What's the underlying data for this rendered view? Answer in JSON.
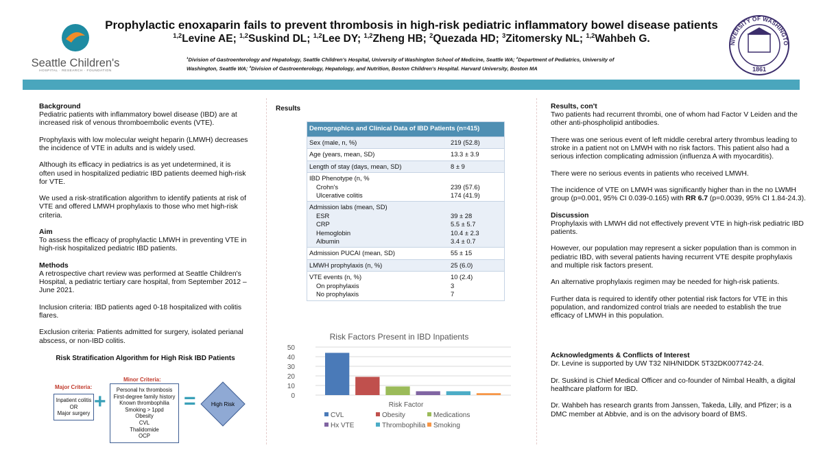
{
  "header": {
    "title": "Prophylactic enoxaparin fails to prevent thrombosis in high-risk pediatric inflammatory bowel disease patients",
    "authors": [
      {
        "sup": "1,2",
        "name": "Levine AE;"
      },
      {
        "sup": "1,2",
        "name": "Suskind DL;"
      },
      {
        "sup": "1,2",
        "name": "Lee DY;"
      },
      {
        "sup": "1,2",
        "name": "Zheng HB;"
      },
      {
        "sup": "2",
        "name": "Quezada HD;"
      },
      {
        "sup": "3",
        "name": "Zitomersky NL;"
      },
      {
        "sup": "1,2",
        "name": "Wahbeh G."
      }
    ],
    "affiliations": [
      {
        "sup": "1",
        "text": "Division of Gastroenterology and Hepatology, Seattle Children's Hospital, University of Washington School of Medicine, Seattle WA;"
      },
      {
        "sup": "2",
        "text": "Department of Pediatrics, University of Washington, Seattle WA;"
      },
      {
        "sup": "3",
        "text": "Division of Gastroenterology, Hepatology, and Nutrition, Boston Children's Hospital. Harvard University, Boston MA"
      }
    ],
    "logo": {
      "name": "Seattle Children's",
      "tagline": "HOSPITAL · RESEARCH · FOUNDATION"
    },
    "seal": {
      "text": "UNIVERSITY OF WASHINGTON",
      "year": "1861"
    }
  },
  "left": [
    {
      "heading": "Background",
      "paragraphs": [
        "Pediatric patients with inflammatory bowel disease (IBD) are at increased risk of venous thromboembolic events (VTE).",
        "Prophylaxis with low molecular weight heparin (LMWH) decreases the incidence of VTE in adults and is widely used.",
        "Although its efficacy in pediatrics is as yet undetermined, it is often used in hospitalized pediatric IBD patients deemed high-risk for VTE.",
        "We used a risk-stratification algorithm to identify patients at risk of VTE and offered LMWH prophylaxis to those who met high-risk criteria."
      ]
    },
    {
      "heading": "Aim",
      "paragraphs": [
        "To assess the efficacy of prophylactic LMWH in preventing VTE in high-risk hospitalized pediatric IBD patients."
      ]
    },
    {
      "heading": "Methods",
      "paragraphs": [
        "A retrospective chart review was performed at Seattle Children's Hospital, a pediatric tertiary care hospital, from September 2012 – June 2021.",
        "Inclusion criteria: IBD patients aged 0-18 hospitalized with colitis flares.",
        "Exclusion criteria: Patients admitted for surgery, isolated perianal abscess, or non-IBD colitis."
      ]
    }
  ],
  "algorithm": {
    "title": "Risk Stratification Algorithm for High Risk IBD Patients",
    "major_label": "Major Criteria:",
    "major": [
      "Inpatient colitis",
      "OR",
      "Major surgery"
    ],
    "plus": "+",
    "minor_label": "Minor Criteria:",
    "minor": [
      "Personal hx thrombosis",
      "First-degree family history",
      "Known thrombophilia",
      "Smoking > 1ppd",
      "Obesity",
      "CVL",
      "Thalidomide",
      "OCP"
    ],
    "equals": "=",
    "result": "High Risk"
  },
  "results_heading": "Results",
  "table": {
    "title": "Demographics and Clinical Data of IBD Patients (n=415)",
    "groups": [
      {
        "label": "Sex (male, n, %)",
        "value": "219 (52.8)"
      },
      {
        "label": "Age (years, mean, SD)",
        "value": "13.3 ± 3.9"
      },
      {
        "label": "Length of stay (days, mean, SD)",
        "value": "8 ± 9"
      },
      {
        "label": "IBD Phenotype (n, %",
        "items": [
          [
            "Crohn's",
            "239 (57.6)"
          ],
          [
            "Ulcerative colitis",
            "174 (41.9)"
          ]
        ]
      },
      {
        "label": "Admission labs (mean, SD)",
        "items": [
          [
            "ESR",
            "39 ± 28"
          ],
          [
            "CRP",
            "5.5 ± 5.7"
          ],
          [
            "Hemoglobin",
            "10.4 ± 2.3"
          ],
          [
            "Albumin",
            "3.4 ± 0.7"
          ]
        ]
      },
      {
        "label": "Admission PUCAI (mean, SD)",
        "value": "55 ± 15"
      },
      {
        "label": "LMWH prophylaxis (n, %)",
        "value": "25 (6.0)"
      },
      {
        "label": "VTE events (n, %)",
        "value": "10 (2.4)",
        "items": [
          [
            "On prophylaxis",
            "3"
          ],
          [
            "No prophylaxis",
            "7"
          ]
        ]
      }
    ]
  },
  "chart_data": {
    "type": "bar",
    "title": "Risk Factors Present in IBD Inpatients",
    "x_label": "Risk Factor",
    "categories": [
      null
    ],
    "series": [
      {
        "name": "CVL",
        "color": "#4a7ab8",
        "values": [
          44
        ]
      },
      {
        "name": "Obesity",
        "color": "#c0504d",
        "values": [
          19
        ]
      },
      {
        "name": "Medications",
        "color": "#9bbb59",
        "values": [
          9
        ]
      },
      {
        "name": "Hx VTE",
        "color": "#8064a2",
        "values": [
          4
        ]
      },
      {
        "name": "Thrombophilia",
        "color": "#4bacc6",
        "values": [
          4
        ]
      },
      {
        "name": "Smoking",
        "color": "#f79646",
        "values": [
          2
        ]
      }
    ],
    "ylim": [
      0,
      50
    ],
    "yticks": [
      0,
      10,
      20,
      30,
      40,
      50
    ],
    "grid": true
  },
  "right": [
    {
      "heading": "Results, con't",
      "paragraphs": [
        "Two patients had recurrent thrombi, one of whom had Factor V Leiden and the other anti-phospholipid antibodies.",
        "There was one serious event of left middle cerebral artery thrombus leading to stroke in a patient not on LMWH with no risk factors. This patient also had a serious infection complicating admission (influenza A with myocarditis).",
        "There were no serious events in patients who received LMWH.",
        [
          "The incidence of VTE on LMWH was significantly higher than in the no LWMH group (p=0.001, 95% CI 0.039-0.165) with ",
          "RR 6.7",
          " (p=0.0039, 95% CI 1.84-24.3)."
        ]
      ]
    },
    {
      "heading": "Discussion",
      "paragraphs": [
        "Prophylaxis with LMWH did not effectively prevent VTE in high-risk pediatric IBD patients.",
        "However, our population may represent a sicker population than is common in pediatric IBD, with several patients having recurrent VTE despite prophylaxis and multiple risk factors present.",
        "An alternative prophylaxis regimen may be needed for high-risk patients.",
        "Further data is required to identify other potential risk factors for VTE in this population, and randomized control trials are needed to establish the true efficacy of LMWH in this population."
      ]
    },
    {
      "heading": "Acknowledgments & Conflicts of Interest",
      "paragraphs": [
        "Dr. Levine is supported by UW T32 NIH/NIDDK 5T32DK007742-24.",
        "Dr. Suskind is Chief Medical Officer and co-founder of Nimbal Health, a digital healthcare platform for IBD.",
        "Dr. Wahbeh has research grants from Janssen, Takeda, Lilly, and Pfizer; is a DMC member at Abbvie, and is on the advisory board of BMS."
      ]
    }
  ]
}
